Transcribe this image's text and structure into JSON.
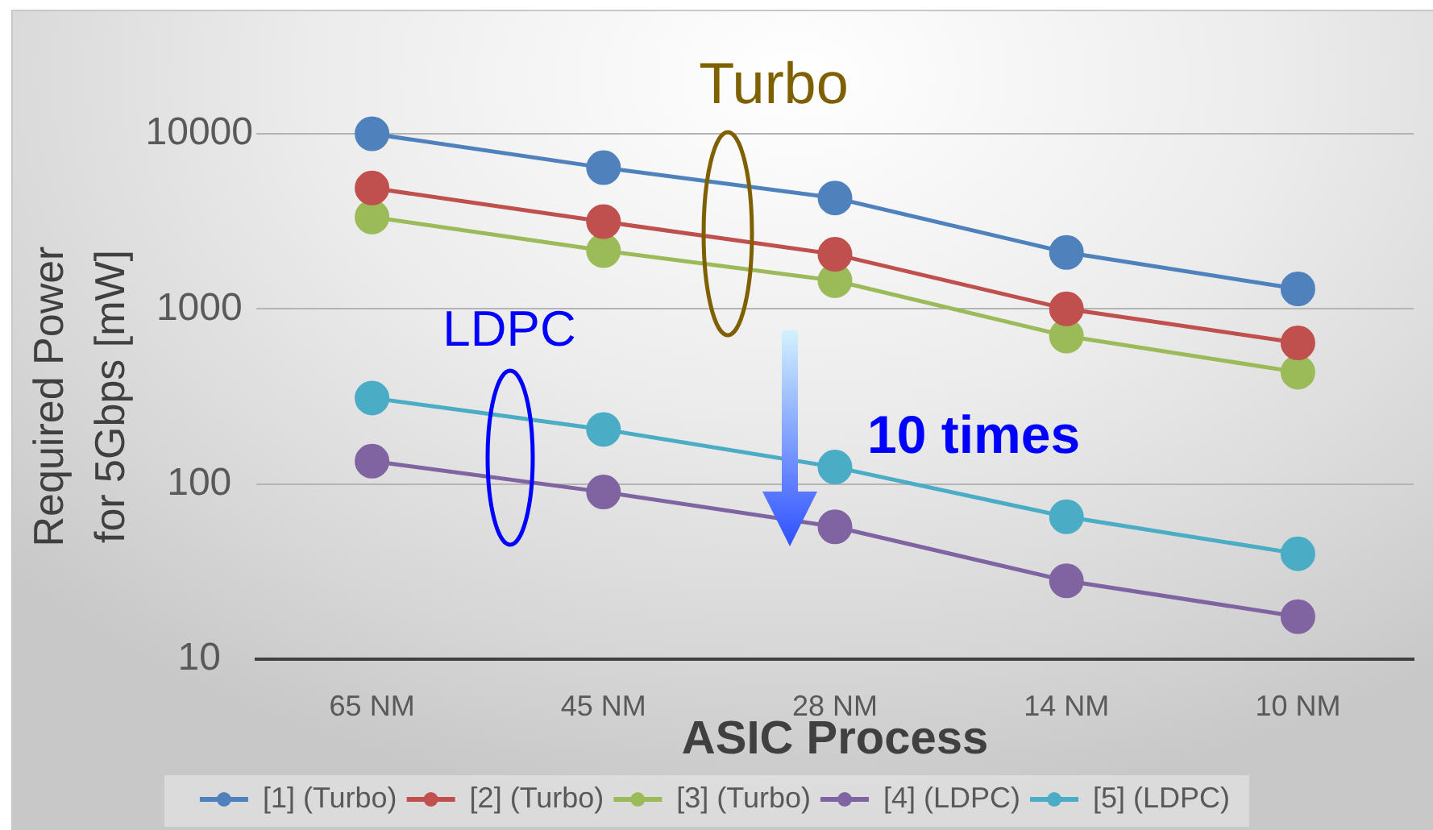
{
  "chart_data": {
    "type": "line",
    "xlabel": "ASIC Process",
    "ylabel": "Required Power for 5Gbps [mW]",
    "categories": [
      "65 NM",
      "45 NM",
      "28 NM",
      "14 NM",
      "10 NM"
    ],
    "series": [
      {
        "name": "[1] (Turbo)",
        "color": "#4f81bd",
        "values": [
          10000,
          6400,
          4300,
          2100,
          1300
        ]
      },
      {
        "name": "[2] (Turbo)",
        "color": "#c0504d",
        "values": [
          4900,
          3150,
          2050,
          1000,
          640
        ]
      },
      {
        "name": "[3] (Turbo)",
        "color": "#9bbb59",
        "values": [
          3350,
          2150,
          1450,
          700,
          435
        ]
      },
      {
        "name": "[4] (LDPC)",
        "color": "#8064a2",
        "values": [
          135,
          90,
          57,
          28,
          17.5
        ]
      },
      {
        "name": "[5] (LDPC)",
        "color": "#4bacc6",
        "values": [
          310,
          205,
          125,
          65,
          40
        ]
      }
    ],
    "log": true,
    "ylim": [
      10,
      10000
    ],
    "yticks": [
      10,
      100,
      1000,
      10000
    ],
    "grid": "y",
    "legend": "bottom",
    "marker": "circle",
    "annotations": [
      "Turbo",
      "LDPC",
      "10 times"
    ]
  }
}
